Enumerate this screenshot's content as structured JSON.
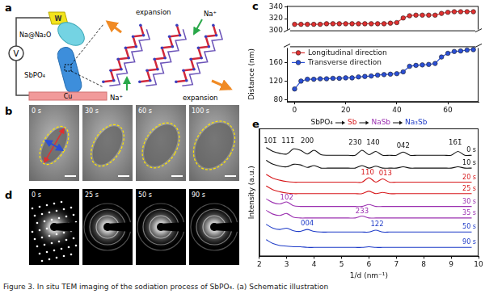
{
  "figure": {
    "panel_labels": [
      "a",
      "b",
      "c",
      "d",
      "e"
    ],
    "schematic": {
      "tip": "W",
      "source": "Na@Na₂O",
      "meter": "V",
      "sample": "SbPO₄",
      "substrate": "Cu",
      "ions": [
        "Na⁺",
        "Na⁺"
      ],
      "expansions": [
        "expansion",
        "expansion"
      ]
    },
    "tem_times": [
      "0 s",
      "30 s",
      "60 s",
      "100 s"
    ],
    "saed_times": [
      "0 s",
      "25 s",
      "50 s",
      "90 s"
    ],
    "caption": "Figure 3. In situ TEM imaging of the sodiation process of SbPO₄. (a) Schematic illustration"
  },
  "chart_data": [
    {
      "type": "line",
      "x": [
        0,
        2.5,
        5,
        7.5,
        10,
        12.5,
        15,
        17.5,
        20,
        22.5,
        25,
        27.5,
        30,
        32.5,
        35,
        37.5,
        40,
        42.5,
        45,
        47.5,
        50,
        52.5,
        55,
        57.5,
        60,
        62.5,
        65,
        67.5,
        70
      ],
      "xlim": [
        -3,
        72
      ],
      "ylim": [
        298,
        342
      ],
      "yticks": [
        300,
        320,
        340
      ],
      "tick_labels": "y",
      "grid": false,
      "series": [
        {
          "name": "Longitudinal direction",
          "color": "#e03030",
          "marker": "circle",
          "values": [
            310,
            310,
            310,
            310,
            310,
            311,
            311,
            311,
            311,
            311,
            311,
            311,
            311,
            311,
            311,
            312,
            313,
            321,
            325,
            326,
            326,
            326,
            326,
            329,
            331,
            332,
            332,
            332,
            332
          ]
        }
      ]
    },
    {
      "type": "line",
      "x": [
        0,
        2.5,
        5,
        7.5,
        10,
        12.5,
        15,
        17.5,
        20,
        22.5,
        25,
        27.5,
        30,
        32.5,
        35,
        37.5,
        40,
        42.5,
        45,
        47.5,
        50,
        52.5,
        55,
        57.5,
        60,
        62.5,
        65,
        67.5,
        70
      ],
      "xlim": [
        -3,
        72
      ],
      "xticks": [
        0,
        20,
        40,
        60
      ],
      "ylim": [
        75,
        195
      ],
      "yticks": [
        80,
        120,
        160
      ],
      "y_label": "Distance (nm)",
      "legend": "upper left",
      "grid": false,
      "series": [
        {
          "name": "Transverse direction",
          "color": "#2a4fd6",
          "marker": "circle",
          "values": [
            103,
            120,
            124,
            124,
            125,
            125,
            126,
            126,
            127,
            127,
            129,
            130,
            131,
            133,
            134,
            135,
            136,
            140,
            152,
            154,
            155,
            156,
            158,
            172,
            180,
            184,
            185,
            187,
            188
          ]
        }
      ]
    },
    {
      "type": "line",
      "title": [
        {
          "text": "SbPO₄",
          "color": "#111111"
        },
        {
          "text": "Sb",
          "color": "#d7191c"
        },
        {
          "text": "NaSb",
          "color": "#9b30b0"
        },
        {
          "text": "Na₃Sb",
          "color": "#1f3cc8"
        }
      ],
      "x_label": "1/d (nm⁻¹)",
      "y_label": "Intensity (a.u.)",
      "x": [
        2.25,
        2.5,
        2.75,
        3,
        3.25,
        3.5,
        3.75,
        4,
        4.25,
        4.5,
        4.75,
        5,
        5.25,
        5.5,
        5.75,
        6,
        6.25,
        6.5,
        6.75,
        7,
        7.25,
        7.5,
        7.75,
        8,
        8.25,
        8.5,
        8.75,
        9,
        9.25,
        9.5,
        9.75
      ],
      "xlim": [
        2,
        10
      ],
      "xticks": [
        2,
        3,
        4,
        5,
        6,
        7,
        8,
        9,
        10
      ],
      "ylim": [
        5,
        105
      ],
      "tick_labels": "x",
      "grid": false,
      "series": [
        {
          "name": "0 s",
          "color": "#111111",
          "values": [
            90,
            87,
            85.5,
            85,
            89,
            88,
            85,
            88,
            84.5,
            84,
            84,
            84,
            84,
            84,
            88,
            84.5,
            87,
            84,
            84,
            84,
            86.5,
            84,
            84,
            84,
            84,
            84,
            84,
            84,
            87,
            84,
            84
          ]
        },
        {
          "name": "10 s",
          "color": "#111111",
          "values": [
            80,
            77,
            75.5,
            75,
            77,
            76.5,
            74.5,
            76,
            74,
            74,
            74,
            74,
            74,
            74,
            76,
            74,
            75.5,
            74,
            74,
            74,
            75,
            74,
            74,
            74,
            74,
            74,
            74,
            74,
            75,
            74,
            74
          ]
        },
        {
          "name": "20 s",
          "color": "#d7191c",
          "values": [
            69,
            66,
            64.5,
            63.5,
            63,
            63,
            63,
            63,
            63,
            63,
            63,
            63,
            63,
            63,
            63,
            66.5,
            63,
            65.5,
            63,
            63,
            63,
            63,
            63,
            63,
            63,
            63,
            63,
            63,
            63,
            63,
            63
          ]
        },
        {
          "name": "25 s",
          "color": "#d7191c",
          "values": [
            60,
            57,
            55.5,
            54.5,
            54,
            54,
            54,
            54,
            54,
            54,
            54,
            54,
            54,
            54,
            54,
            56,
            54,
            55,
            54,
            54,
            54,
            54,
            54,
            54,
            54,
            54,
            54,
            54,
            54,
            54,
            54
          ]
        },
        {
          "name": "30 s",
          "color": "#9b30b0",
          "values": [
            50,
            47,
            46,
            47.5,
            44.5,
            44,
            44,
            44,
            44,
            44,
            44,
            44,
            44,
            44,
            44,
            45.5,
            44,
            44,
            44,
            44,
            44,
            44,
            44,
            44,
            44,
            44,
            44,
            44,
            44,
            44,
            44
          ]
        },
        {
          "name": "35 s",
          "color": "#9b30b0",
          "values": [
            41,
            38,
            37,
            38.5,
            35.5,
            35,
            35,
            35,
            35,
            35,
            35,
            35,
            35,
            35,
            36.5,
            35,
            35,
            35,
            35,
            35,
            35,
            35,
            35,
            35,
            35,
            35,
            35,
            35,
            35,
            35,
            35
          ]
        },
        {
          "name": "50 s",
          "color": "#1f3cc8",
          "values": [
            30,
            27,
            26,
            27,
            25,
            24.5,
            26,
            24.5,
            24,
            24,
            24,
            24,
            24,
            24,
            24,
            24,
            25.5,
            24,
            24,
            24,
            24,
            24,
            24,
            24,
            24,
            24,
            24,
            24,
            24,
            24,
            24
          ]
        },
        {
          "name": "90 s",
          "color": "#1f3cc8",
          "values": [
            18,
            15,
            13.5,
            13,
            12.5,
            12.5,
            12,
            12,
            12,
            12,
            12,
            12,
            12,
            12,
            12,
            12.5,
            12,
            12,
            12,
            12,
            12,
            12,
            12,
            12,
            12,
            12,
            12,
            12,
            12,
            12,
            12
          ]
        }
      ],
      "annotations": [
        {
          "text": "101̄",
          "x": 2.4,
          "y": 95,
          "color": "#111111"
        },
        {
          "text": "111̄",
          "x": 3.05,
          "y": 95,
          "color": "#111111"
        },
        {
          "text": "200",
          "x": 3.75,
          "y": 95,
          "color": "#111111"
        },
        {
          "text": "230",
          "x": 5.5,
          "y": 94,
          "color": "#111111"
        },
        {
          "text": "140",
          "x": 6.15,
          "y": 94,
          "color": "#111111"
        },
        {
          "text": "042",
          "x": 7.25,
          "y": 91,
          "color": "#111111"
        },
        {
          "text": "161̄",
          "x": 9.15,
          "y": 94,
          "color": "#111111"
        },
        {
          "text": "110",
          "x": 5.95,
          "y": 70.5,
          "color": "#d7191c"
        },
        {
          "text": "013",
          "x": 6.6,
          "y": 70,
          "color": "#d7191c"
        },
        {
          "text": "102",
          "x": 3.0,
          "y": 50.8,
          "color": "#9b30b0"
        },
        {
          "text": "233̄",
          "x": 5.75,
          "y": 40.2,
          "color": "#9b30b0"
        },
        {
          "text": "004",
          "x": 3.75,
          "y": 30.5,
          "color": "#1f3cc8"
        },
        {
          "text": "122",
          "x": 6.3,
          "y": 30.2,
          "color": "#1f3cc8"
        }
      ]
    }
  ]
}
